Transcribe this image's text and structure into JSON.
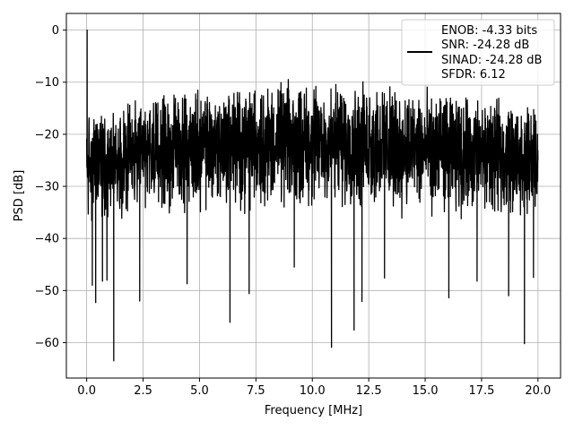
{
  "chart_data": {
    "type": "line",
    "xlabel": "Frequency [MHz]",
    "ylabel": "PSD [dB]",
    "xlim": [
      -0.9,
      21.0
    ],
    "ylim": [
      -66.8,
      3.2
    ],
    "xticks": [
      0.0,
      2.5,
      5.0,
      7.5,
      10.0,
      12.5,
      15.0,
      17.5,
      20.0
    ],
    "xtick_labels": [
      "0.0",
      "2.5",
      "5.0",
      "7.5",
      "10.0",
      "12.5",
      "15.0",
      "17.5",
      "20.0"
    ],
    "yticks": [
      0,
      -10,
      -20,
      -30,
      -40,
      -50,
      -60
    ],
    "ytick_labels": [
      "0",
      "−10",
      "−20",
      "−30",
      "−40",
      "−50",
      "−60"
    ],
    "grid": true,
    "line_color": "#000000",
    "legend_position": "upper-right",
    "legend_lines": [
      "ENOB: -4.33 bits",
      "SNR: -24.28 dB",
      "SINAD: -24.28 dB",
      "SFDR: 6.12"
    ],
    "noise_band": {
      "upper_envelope_db": [
        [
          0.0,
          -15
        ],
        [
          3.0,
          -12
        ],
        [
          7.5,
          -9
        ],
        [
          12.5,
          -9
        ],
        [
          20.0,
          -14
        ]
      ],
      "lower_envelope_db": [
        [
          0.0,
          -38
        ],
        [
          5.0,
          -36
        ],
        [
          10.0,
          -36
        ],
        [
          15.0,
          -37
        ],
        [
          20.0,
          -37
        ]
      ],
      "median_db": -24.3
    },
    "peaks": [
      {
        "x": 0.02,
        "y": 0
      }
    ],
    "dips": [
      {
        "x": 0.25,
        "y": -49
      },
      {
        "x": 0.4,
        "y": -52.3
      },
      {
        "x": 0.7,
        "y": -48.2
      },
      {
        "x": 0.9,
        "y": -48
      },
      {
        "x": 1.2,
        "y": -63.5
      },
      {
        "x": 2.35,
        "y": -52
      },
      {
        "x": 4.45,
        "y": -48.7
      },
      {
        "x": 6.35,
        "y": -56.1
      },
      {
        "x": 7.2,
        "y": -50.6
      },
      {
        "x": 9.2,
        "y": -45.5
      },
      {
        "x": 10.85,
        "y": -60.9
      },
      {
        "x": 11.85,
        "y": -57.6
      },
      {
        "x": 12.2,
        "y": -52.1
      },
      {
        "x": 13.2,
        "y": -47.6
      },
      {
        "x": 16.05,
        "y": -51.4
      },
      {
        "x": 17.3,
        "y": -48.2
      },
      {
        "x": 18.7,
        "y": -51
      },
      {
        "x": 19.4,
        "y": -60.2
      },
      {
        "x": 19.8,
        "y": -47.5
      }
    ]
  }
}
